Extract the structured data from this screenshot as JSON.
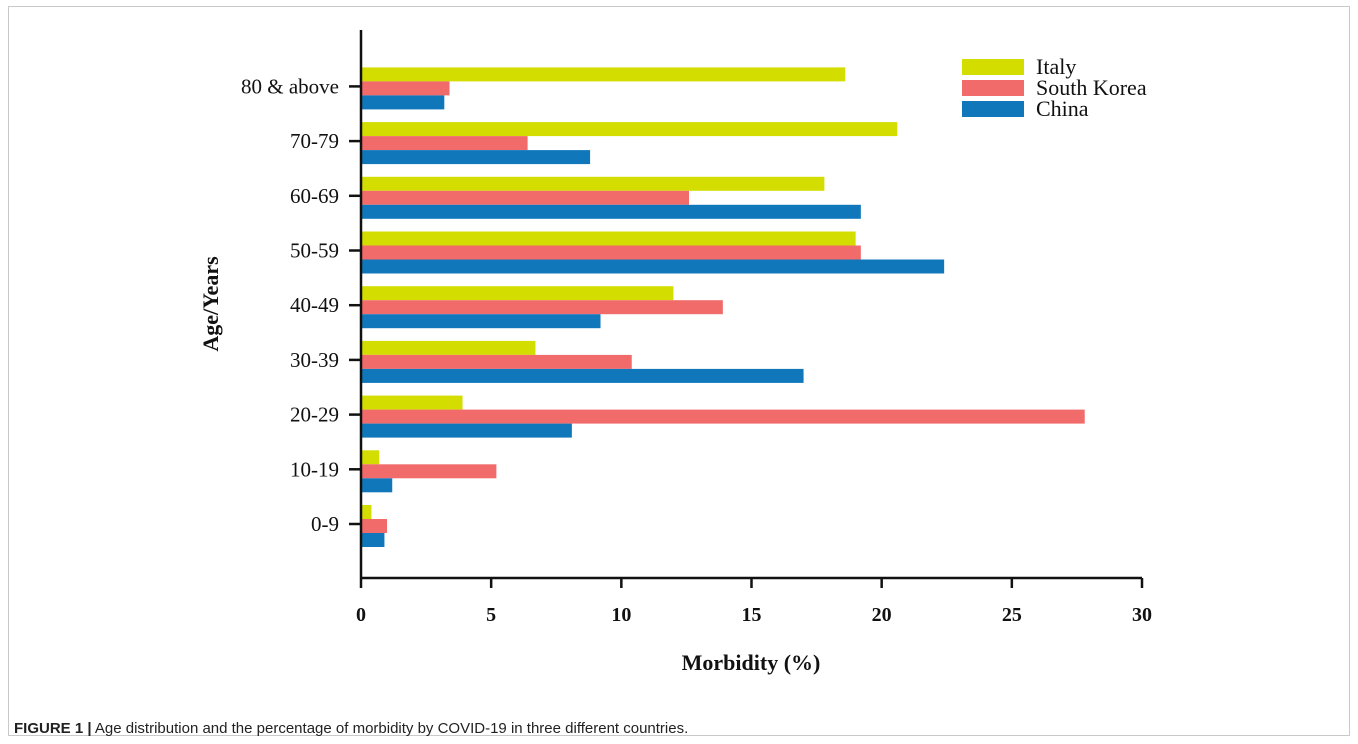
{
  "chart_data": {
    "type": "bar",
    "orientation": "horizontal",
    "categories": [
      "0-9",
      "10-19",
      "20-29",
      "30-39",
      "40-49",
      "50-59",
      "60-69",
      "70-79",
      "80 & above"
    ],
    "series": [
      {
        "name": "Italy",
        "color": "#d4dd00",
        "values": [
          0.4,
          0.7,
          3.9,
          6.7,
          12.0,
          19.0,
          17.8,
          20.6,
          18.6
        ]
      },
      {
        "name": "South Korea",
        "color": "#f26b6b",
        "values": [
          1.0,
          5.2,
          27.8,
          10.4,
          13.9,
          19.2,
          12.6,
          6.4,
          3.4
        ]
      },
      {
        "name": "China",
        "color": "#1177bb",
        "values": [
          0.9,
          1.2,
          8.1,
          17.0,
          9.2,
          22.4,
          19.2,
          8.8,
          3.2
        ]
      }
    ],
    "xlabel": "Morbidity (%)",
    "ylabel": "Age/Years",
    "xlim": [
      0,
      30
    ],
    "xticks": [
      "0",
      "5",
      "10",
      "15",
      "20",
      "25",
      "30"
    ],
    "grid": false,
    "legend_position": "top-right"
  },
  "caption": {
    "label": "FIGURE 1 |",
    "text": " Age distribution and the percentage of morbidity by COVID-19 in three different countries."
  }
}
